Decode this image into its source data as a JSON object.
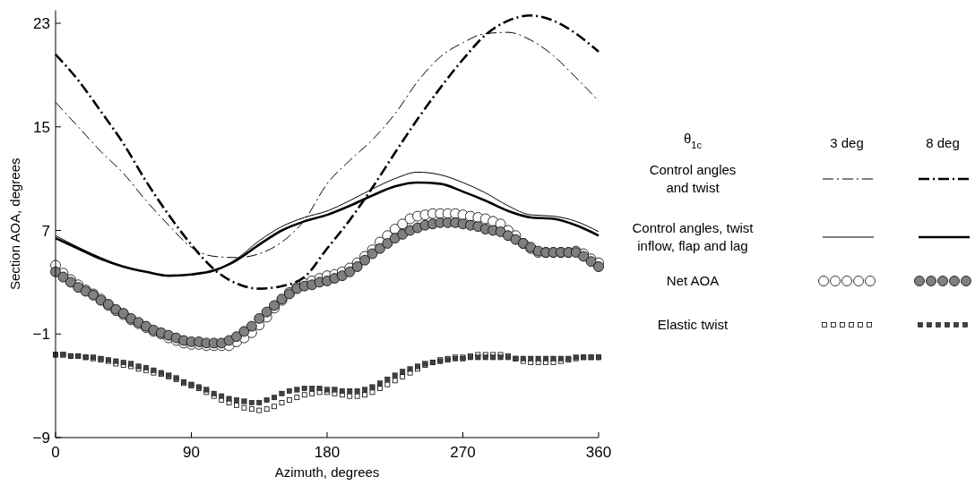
{
  "chart_data": {
    "type": "line",
    "xlabel": "Azimuth, degrees",
    "ylabel": "Section AOA, degrees",
    "legend_title": "θ$_{1c}$",
    "legend": "right",
    "annotations": [
      "3 deg",
      "8 deg"
    ],
    "xlim": [
      0,
      360
    ],
    "xticks": [
      0,
      90,
      180,
      270,
      360
    ],
    "ylim": [
      -9,
      24
    ],
    "yticks": [
      {
        "value": -9,
        "label": "−9"
      },
      {
        "value": -1,
        "label": "−1"
      },
      7,
      15,
      23
    ],
    "grid": false,
    "x": [
      0,
      5,
      10,
      15,
      20,
      25,
      30,
      35,
      40,
      45,
      50,
      55,
      60,
      65,
      70,
      75,
      80,
      85,
      90,
      95,
      100,
      105,
      110,
      115,
      120,
      125,
      130,
      135,
      140,
      145,
      150,
      155,
      160,
      165,
      170,
      175,
      180,
      185,
      190,
      195,
      200,
      205,
      210,
      215,
      220,
      225,
      230,
      235,
      240,
      245,
      250,
      255,
      260,
      265,
      270,
      275,
      280,
      285,
      290,
      295,
      300,
      305,
      310,
      315,
      320,
      325,
      330,
      335,
      340,
      345,
      350,
      355,
      360
    ],
    "series": [
      {
        "name": "Control angles\nand twist",
        "line_style": "dashed",
        "marker": "none",
        "color": "#000000",
        "x": [
          0,
          15,
          30,
          45,
          60,
          75,
          90,
          105,
          120,
          135,
          150,
          165,
          180,
          195,
          210,
          225,
          240,
          255,
          270,
          285,
          300,
          315,
          330,
          345,
          360
        ],
        "values": [
          16.9,
          15.0,
          13.1,
          11.4,
          9.3,
          7.4,
          5.7,
          5.0,
          4.9,
          5.2,
          6.1,
          7.8,
          10.6,
          12.4,
          14.0,
          16.0,
          18.5,
          20.4,
          21.5,
          22.2,
          22.3,
          21.7,
          20.5,
          18.8,
          17.0
        ]
      },
      {
        "name": "Control angles, twist\ninflow, flap and lag",
        "line_style": "solid",
        "marker": "none",
        "color": "#000000",
        "x": [
          0,
          15,
          30,
          45,
          60,
          75,
          90,
          105,
          120,
          135,
          150,
          165,
          180,
          195,
          210,
          225,
          240,
          255,
          270,
          285,
          300,
          315,
          330,
          345,
          360
        ],
        "values": [
          6.6,
          5.7,
          4.9,
          4.2,
          3.8,
          3.5,
          3.6,
          3.9,
          4.8,
          6.2,
          7.3,
          8.0,
          8.5,
          9.3,
          10.2,
          11.0,
          11.5,
          11.3,
          10.7,
          9.9,
          8.9,
          8.2,
          8.1,
          7.7,
          6.9
        ]
      },
      {
        "name": "Net  AOA",
        "type": "scatter",
        "marker": "circle",
        "color": "#ffffff",
        "values": [
          4.3,
          3.7,
          3.2,
          2.8,
          2.4,
          2.1,
          1.7,
          1.2,
          0.8,
          0.5,
          0.1,
          -0.2,
          -0.5,
          -0.8,
          -1.0,
          -1.3,
          -1.5,
          -1.7,
          -1.8,
          -1.8,
          -1.9,
          -1.9,
          -1.9,
          -1.9,
          -1.6,
          -1.3,
          -0.9,
          -0.3,
          0.3,
          1.0,
          1.6,
          2.2,
          2.6,
          2.9,
          3.1,
          3.3,
          3.5,
          3.6,
          3.8,
          4.1,
          4.5,
          5.0,
          5.5,
          6.1,
          6.6,
          7.1,
          7.5,
          7.9,
          8.1,
          8.2,
          8.3,
          8.3,
          8.3,
          8.3,
          8.2,
          8.1,
          8.0,
          7.9,
          7.7,
          7.5,
          7.0,
          6.6,
          6.0,
          5.6,
          5.3,
          5.3,
          5.3,
          5.3,
          5.3,
          5.4,
          5.2,
          4.8,
          4.5
        ]
      },
      {
        "name": "Elastic twist",
        "type": "scatter",
        "marker": "square",
        "color": "#ffffff",
        "values": [
          -2.6,
          -2.6,
          -2.7,
          -2.7,
          -2.8,
          -2.9,
          -3.0,
          -3.1,
          -3.3,
          -3.4,
          -3.5,
          -3.7,
          -3.8,
          -4.0,
          -4.1,
          -4.3,
          -4.5,
          -4.8,
          -5.0,
          -5.2,
          -5.5,
          -5.8,
          -6.1,
          -6.3,
          -6.5,
          -6.7,
          -6.8,
          -6.9,
          -6.8,
          -6.6,
          -6.3,
          -6.1,
          -5.9,
          -5.7,
          -5.6,
          -5.5,
          -5.5,
          -5.6,
          -5.7,
          -5.8,
          -5.8,
          -5.7,
          -5.5,
          -5.2,
          -4.9,
          -4.6,
          -4.3,
          -4.0,
          -3.7,
          -3.4,
          -3.2,
          -3.0,
          -2.9,
          -2.8,
          -2.8,
          -2.7,
          -2.6,
          -2.6,
          -2.6,
          -2.6,
          -2.7,
          -2.9,
          -3.1,
          -3.2,
          -3.2,
          -3.2,
          -3.2,
          -3.1,
          -3.0,
          -2.9,
          -2.8,
          -2.8,
          -2.8
        ]
      },
      {
        "line_style": "dashed",
        "marker": "none",
        "color": "#000000",
        "x": [
          0,
          15,
          30,
          45,
          60,
          75,
          90,
          105,
          120,
          135,
          150,
          165,
          180,
          195,
          210,
          225,
          240,
          255,
          270,
          285,
          300,
          315,
          330,
          345,
          360
        ],
        "values": [
          20.6,
          18.6,
          16.2,
          13.7,
          10.8,
          8.2,
          5.9,
          4.0,
          2.9,
          2.5,
          2.7,
          3.4,
          5.6,
          7.8,
          10.3,
          13.0,
          15.6,
          18.0,
          20.2,
          22.1,
          23.2,
          23.6,
          23.2,
          22.2,
          20.8
        ]
      },
      {
        "line_style": "solid",
        "marker": "none",
        "color": "#000000",
        "x": [
          0,
          15,
          30,
          45,
          60,
          75,
          90,
          105,
          120,
          135,
          150,
          165,
          180,
          195,
          210,
          225,
          240,
          255,
          270,
          285,
          300,
          315,
          330,
          345,
          360
        ],
        "values": [
          6.4,
          5.6,
          4.8,
          4.2,
          3.8,
          3.5,
          3.6,
          3.9,
          4.7,
          5.9,
          7.0,
          7.7,
          8.2,
          8.9,
          9.7,
          10.4,
          10.7,
          10.6,
          10.0,
          9.3,
          8.5,
          8.0,
          7.9,
          7.4,
          6.6
        ]
      },
      {
        "type": "scatter",
        "marker": "circle",
        "color": "#808080",
        "values": [
          3.8,
          3.4,
          3.0,
          2.6,
          2.3,
          2.0,
          1.6,
          1.3,
          0.9,
          0.6,
          0.2,
          -0.1,
          -0.4,
          -0.7,
          -0.9,
          -1.1,
          -1.3,
          -1.5,
          -1.6,
          -1.6,
          -1.7,
          -1.7,
          -1.7,
          -1.5,
          -1.2,
          -0.8,
          -0.4,
          0.2,
          0.7,
          1.2,
          1.7,
          2.1,
          2.5,
          2.7,
          2.8,
          3.0,
          3.1,
          3.3,
          3.5,
          3.8,
          4.2,
          4.7,
          5.2,
          5.6,
          6.0,
          6.4,
          6.7,
          7.0,
          7.2,
          7.4,
          7.5,
          7.6,
          7.6,
          7.6,
          7.5,
          7.4,
          7.3,
          7.1,
          7.0,
          6.9,
          6.6,
          6.3,
          6.0,
          5.7,
          5.4,
          5.3,
          5.3,
          5.3,
          5.3,
          5.3,
          5.0,
          4.6,
          4.2
        ]
      },
      {
        "type": "scatter",
        "marker": "square",
        "color": "#404040",
        "values": [
          -2.6,
          -2.6,
          -2.7,
          -2.7,
          -2.8,
          -2.8,
          -2.9,
          -3.0,
          -3.1,
          -3.2,
          -3.3,
          -3.5,
          -3.6,
          -3.8,
          -4.0,
          -4.2,
          -4.4,
          -4.7,
          -4.9,
          -5.1,
          -5.3,
          -5.6,
          -5.8,
          -6.0,
          -6.1,
          -6.2,
          -6.3,
          -6.3,
          -6.1,
          -5.9,
          -5.6,
          -5.4,
          -5.3,
          -5.2,
          -5.2,
          -5.2,
          -5.3,
          -5.3,
          -5.4,
          -5.4,
          -5.4,
          -5.3,
          -5.1,
          -4.8,
          -4.5,
          -4.2,
          -3.9,
          -3.7,
          -3.5,
          -3.3,
          -3.2,
          -3.1,
          -3.0,
          -2.9,
          -2.9,
          -2.8,
          -2.8,
          -2.8,
          -2.8,
          -2.8,
          -2.8,
          -2.9,
          -2.9,
          -2.9,
          -2.9,
          -2.9,
          -2.9,
          -2.9,
          -2.9,
          -2.8,
          -2.8,
          -2.8,
          -2.8
        ]
      }
    ]
  }
}
